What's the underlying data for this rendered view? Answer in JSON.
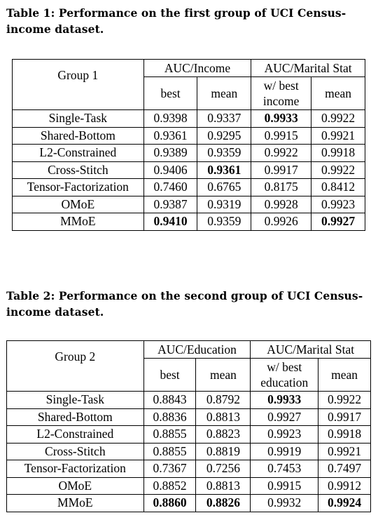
{
  "table1": {
    "caption": "Table 1: Performance on the first group of UCI Census-income dataset.",
    "group_label": "Group 1",
    "auc_a": "AUC/Income",
    "auc_b": "AUC/Marital Stat",
    "sub_best": "best",
    "sub_mean": "mean",
    "sub_wbest_1": "w/ best",
    "sub_wbest_2": "income",
    "sub_mean2": "mean",
    "rows": [
      {
        "name": "Single-Task",
        "c1": "0.9398",
        "c2": "0.9337",
        "c3": "0.9933",
        "c4": "0.9922"
      },
      {
        "name": "Shared-Bottom",
        "c1": "0.9361",
        "c2": "0.9295",
        "c3": "0.9915",
        "c4": "0.9921"
      },
      {
        "name": "L2-Constrained",
        "c1": "0.9389",
        "c2": "0.9359",
        "c3": "0.9922",
        "c4": "0.9918"
      },
      {
        "name": "Cross-Stitch",
        "c1": "0.9406",
        "c2": "0.9361",
        "c3": "0.9917",
        "c4": "0.9922"
      },
      {
        "name": "Tensor-Factorization",
        "c1": "0.7460",
        "c2": "0.6765",
        "c3": "0.8175",
        "c4": "0.8412"
      },
      {
        "name": "OMoE",
        "c1": "0.9387",
        "c2": "0.9319",
        "c3": "0.9928",
        "c4": "0.9923"
      },
      {
        "name": "MMoE",
        "c1": "0.9410",
        "c2": "0.9359",
        "c3": "0.9926",
        "c4": "0.9927"
      }
    ]
  },
  "table2": {
    "caption": "Table 2: Performance on the second group of UCI Census-income dataset.",
    "group_label": "Group 2",
    "auc_a": "AUC/Education",
    "auc_b": "AUC/Marital Stat",
    "sub_best": "best",
    "sub_mean": "mean",
    "sub_wbest_1": "w/ best",
    "sub_wbest_2": "education",
    "sub_mean2": "mean",
    "rows": [
      {
        "name": "Single-Task",
        "c1": "0.8843",
        "c2": "0.8792",
        "c3": "0.9933",
        "c4": "0.9922"
      },
      {
        "name": "Shared-Bottom",
        "c1": "0.8836",
        "c2": "0.8813",
        "c3": "0.9927",
        "c4": "0.9917"
      },
      {
        "name": "L2-Constrained",
        "c1": "0.8855",
        "c2": "0.8823",
        "c3": "0.9923",
        "c4": "0.9918"
      },
      {
        "name": "Cross-Stitch",
        "c1": "0.8855",
        "c2": "0.8819",
        "c3": "0.9919",
        "c4": "0.9921"
      },
      {
        "name": "Tensor-Factorization",
        "c1": "0.7367",
        "c2": "0.7256",
        "c3": "0.7453",
        "c4": "0.7497"
      },
      {
        "name": "OMoE",
        "c1": "0.8852",
        "c2": "0.8813",
        "c3": "0.9915",
        "c4": "0.9912"
      },
      {
        "name": "MMoE",
        "c1": "0.8860",
        "c2": "0.8826",
        "c3": "0.9932",
        "c4": "0.9924"
      }
    ]
  }
}
